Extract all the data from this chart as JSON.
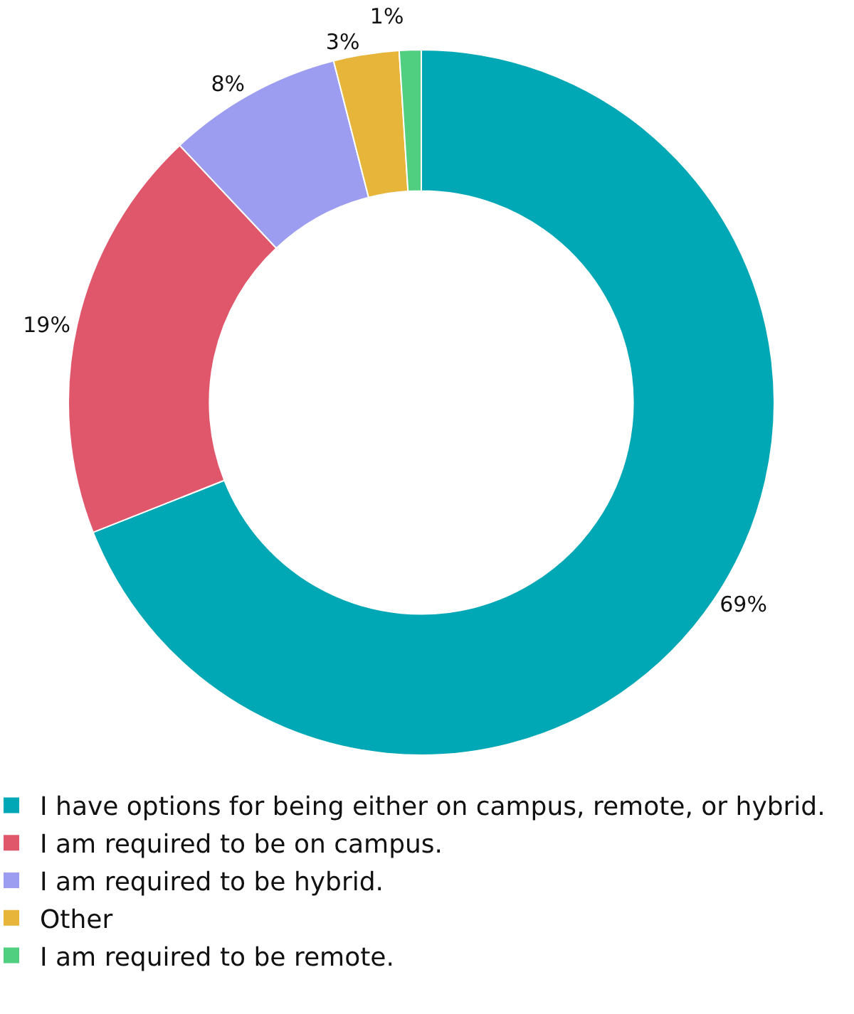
{
  "chart_data": {
    "type": "donut",
    "categories": [
      "I have options for being either on campus, remote, or hybrid.",
      "I am required to be on campus.",
      "I am required to be hybrid.",
      "Other",
      "I am required to be remote."
    ],
    "values": [
      69,
      19,
      8,
      3,
      1
    ],
    "value_labels": [
      "69%",
      "19%",
      "8%",
      "3%",
      "1%"
    ],
    "colors": [
      "#00a7b4",
      "#e0566a",
      "#9c9cf0",
      "#e6b53a",
      "#4fcf7f"
    ],
    "legend": "bottom left"
  }
}
